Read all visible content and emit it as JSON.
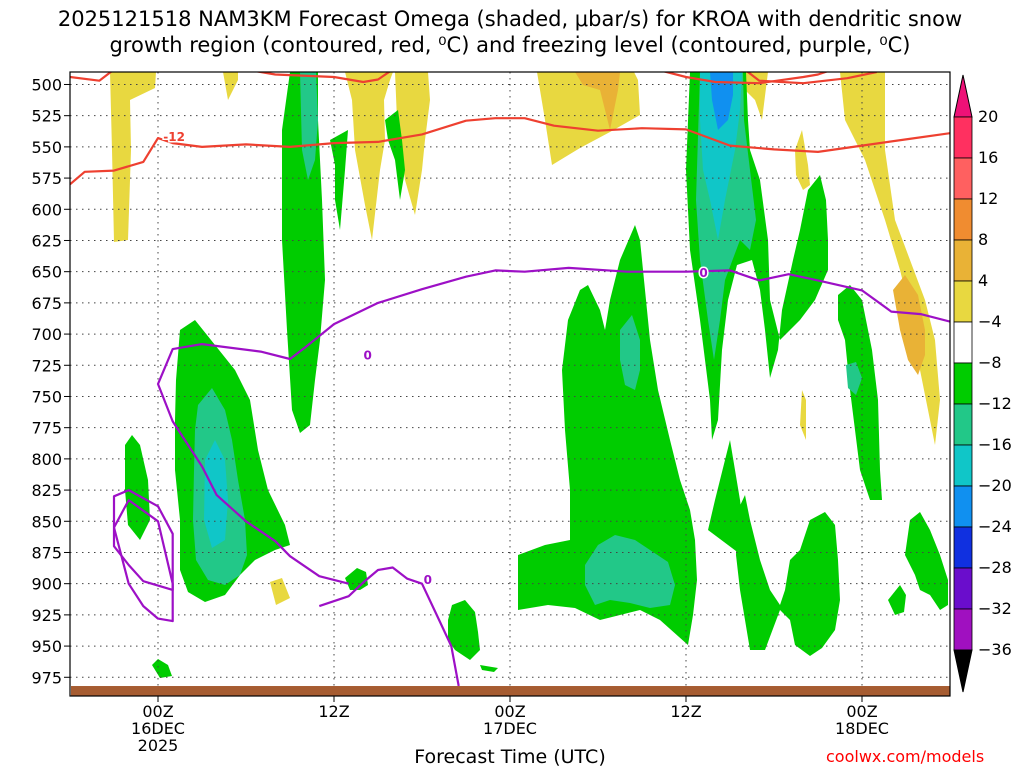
{
  "chart_data": {
    "type": "contour",
    "title_line1": "2025121518 NAM3KM Forecast Omega (shaded, μbar/s) for KROA with dendritic snow",
    "title_line2": "growth region (contoured, red, ⁰C) and freezing level (contoured, purple, ⁰C)",
    "xlabel": "Forecast Time (UTC)",
    "credit": "coolwx.com/models",
    "y_axis": {
      "label_unit": "hPa",
      "ticks": [
        500,
        525,
        550,
        575,
        600,
        625,
        650,
        675,
        700,
        725,
        750,
        775,
        800,
        825,
        850,
        875,
        900,
        925,
        950,
        975
      ],
      "labels": [
        "500",
        "525",
        "550",
        "575",
        "600",
        "625",
        "650",
        "675",
        "700",
        "725",
        "750",
        "775",
        "800",
        "825",
        "850",
        "875",
        "900",
        "925",
        "950",
        "975"
      ],
      "range": [
        990,
        490
      ]
    },
    "x_axis": {
      "unit": "hours from 2025121518",
      "range": [
        0,
        60
      ],
      "ticks": [
        {
          "hour": 6,
          "line1": "00Z",
          "line2": "16DEC",
          "line3": "2025"
        },
        {
          "hour": 18,
          "line1": "12Z",
          "line2": "",
          "line3": ""
        },
        {
          "hour": 30,
          "line1": "00Z",
          "line2": "17DEC",
          "line3": ""
        },
        {
          "hour": 42,
          "line1": "12Z",
          "line2": "",
          "line3": ""
        },
        {
          "hour": 54,
          "line1": "00Z",
          "line2": "18DEC",
          "line3": ""
        }
      ]
    },
    "colorbar": {
      "labels": [
        "20",
        "16",
        "12",
        "8",
        "4",
        "−4",
        "−8",
        "−12",
        "−16",
        "−20",
        "−24",
        "−28",
        "−32",
        "−36"
      ],
      "colors": [
        "#ff3060",
        "#ff6060",
        "#f08c30",
        "#e9b236",
        "#e8d840",
        "#ffffff",
        "#00cc00",
        "#22c888",
        "#10c6c8",
        "#1090f0",
        "#1030e0",
        "#6a0dcc",
        "#a010c0",
        "#a8a8a8"
      ],
      "extend_top_color": "#ee1177",
      "extend_bottom_color": "#000000"
    },
    "shade_levels": [
      {
        "name": "omega 4 to 8",
        "color": "#e8d840"
      },
      {
        "name": "omega 8 to 12",
        "color": "#e9b236"
      },
      {
        "name": "omega -4 to -8",
        "color": "#00cc00"
      },
      {
        "name": "omega -8 to -12",
        "color": "#22c888"
      },
      {
        "name": "omega -12 to -16",
        "color": "#10c6c8"
      },
      {
        "name": "omega -16 to -20",
        "color": "#1090f0"
      }
    ],
    "contours": [
      {
        "name": "dendritic growth -12C",
        "color": "#ee4030",
        "label": "-12",
        "series": [
          [
            [
              0,
              580
            ],
            [
              1,
              570
            ],
            [
              3,
              569
            ],
            [
              5,
              562
            ],
            [
              6,
              543
            ],
            [
              7,
              547
            ],
            [
              9,
              550
            ],
            [
              12,
              548
            ],
            [
              15,
              550
            ],
            [
              18,
              547
            ],
            [
              21,
              546
            ],
            [
              24,
              540
            ],
            [
              27,
              529
            ],
            [
              29,
              527
            ],
            [
              31,
              527
            ],
            [
              33,
              533
            ],
            [
              36,
              537
            ],
            [
              39,
              535
            ],
            [
              42,
              536
            ],
            [
              45,
              549
            ],
            [
              48,
              552
            ],
            [
              51,
              554
            ],
            [
              54,
              549
            ],
            [
              57,
              544
            ],
            [
              60,
              539
            ]
          ],
          [
            [
              0,
              494
            ],
            [
              2,
              497
            ],
            [
              3,
              488
            ],
            [
              12,
              488
            ],
            [
              14,
              492
            ],
            [
              18,
              494
            ],
            [
              20,
              498
            ],
            [
              21,
              496
            ],
            [
              22,
              488
            ]
          ],
          [
            [
              40,
              488
            ],
            [
              42,
              494
            ],
            [
              44,
              498
            ],
            [
              47,
              499
            ],
            [
              50,
              494
            ],
            [
              51,
              492
            ],
            [
              52,
              488
            ]
          ],
          [
            [
              46,
              488
            ],
            [
              47,
              497
            ],
            [
              50,
              499
            ],
            [
              53,
              495
            ],
            [
              55,
              490
            ]
          ]
        ]
      },
      {
        "name": "freezing level 0C",
        "color": "#9d10c6",
        "label": "0",
        "series": [
          [
            [
              17,
              918
            ],
            [
              19,
              910
            ],
            [
              20,
              899
            ],
            [
              21,
              889
            ],
            [
              22,
              887
            ],
            [
              23,
              896
            ],
            [
              24,
              900
            ],
            [
              25,
              925
            ],
            [
              26,
              950
            ],
            [
              26.5,
              982
            ]
          ],
          [
            [
              19,
              900
            ],
            [
              17,
              894
            ],
            [
              15,
              878
            ],
            [
              14,
              866
            ],
            [
              12,
              850
            ],
            [
              10,
              829
            ],
            [
              9,
              806
            ],
            [
              7,
              770
            ],
            [
              6,
              740
            ],
            [
              7,
              712
            ],
            [
              9,
              708
            ],
            [
              13,
              714
            ],
            [
              15,
              720
            ],
            [
              16,
              711
            ],
            [
              18,
              692
            ],
            [
              21,
              675
            ],
            [
              24,
              664
            ],
            [
              27,
              654
            ],
            [
              29,
              649
            ],
            [
              31,
              650
            ],
            [
              34,
              647
            ],
            [
              38,
              650
            ],
            [
              42,
              650
            ],
            [
              45,
              649
            ],
            [
              47,
              657
            ],
            [
              49,
              652
            ],
            [
              51,
              657
            ],
            [
              54,
              665
            ],
            [
              56,
              682
            ],
            [
              58,
              684
            ],
            [
              60,
              690
            ]
          ],
          [
            [
              3,
              850
            ],
            [
              3,
              830
            ],
            [
              4,
              825
            ],
            [
              6,
              838
            ],
            [
              7,
              860
            ],
            [
              7,
              893
            ],
            [
              7,
              905
            ],
            [
              5,
              898
            ],
            [
              4,
              885
            ],
            [
              3,
              870
            ],
            [
              3,
              850
            ]
          ],
          [
            [
              3,
              855
            ],
            [
              4,
              900
            ],
            [
              5,
              918
            ],
            [
              6,
              928
            ],
            [
              7,
              930
            ],
            [
              7,
              900
            ],
            [
              6,
              850
            ],
            [
              4,
              833
            ],
            [
              3,
              855
            ]
          ]
        ]
      }
    ],
    "ground": {
      "name": "terrain",
      "color": "#a65c31",
      "level_hpa": 982
    }
  }
}
